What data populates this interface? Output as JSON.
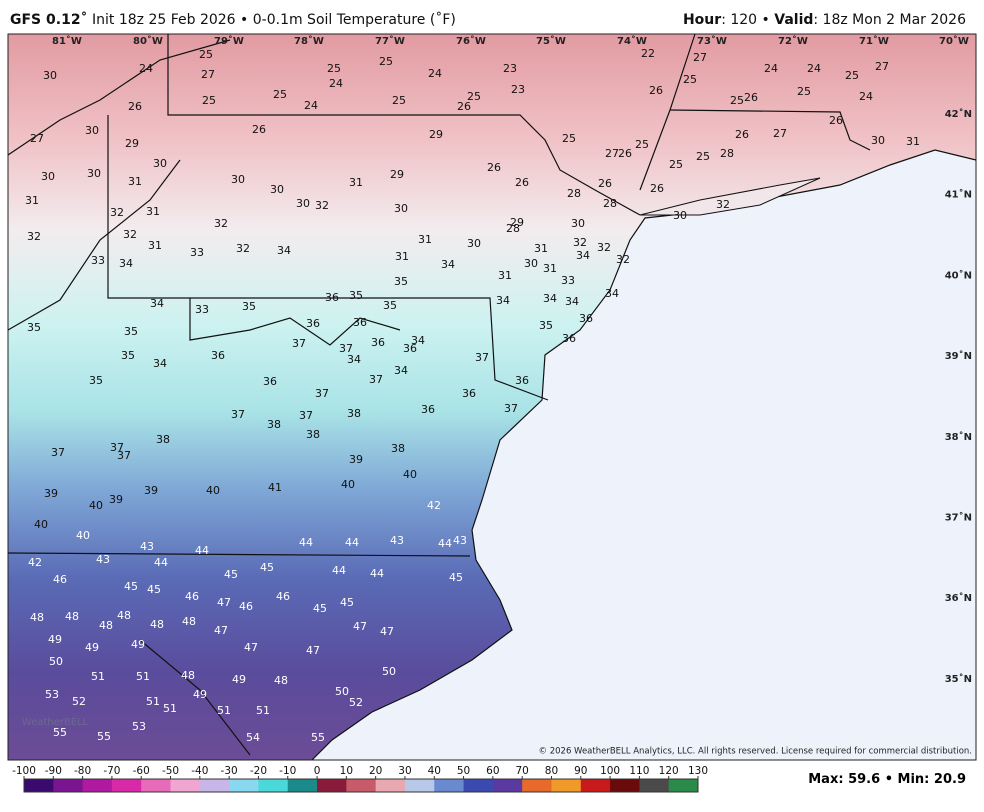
{
  "header": {
    "model": "GFS 0.12˚",
    "init": "Init 18z 25 Feb 2026 • 0-0.1m Soil Temperature (˚F)",
    "hour_label": "Hour",
    "hour_value": ": 120 •",
    "valid_label": "Valid",
    "valid_value": ": 18z Mon 2 Mar 2026"
  },
  "longitude_labels": [
    "81˚W",
    "80˚W",
    "79˚W",
    "78˚W",
    "77˚W",
    "76˚W",
    "75˚W",
    "74˚W",
    "73˚W",
    "72˚W",
    "71˚W",
    "70˚W"
  ],
  "latitude_labels": [
    "42˚N",
    "41˚N",
    "40˚N",
    "39˚N",
    "38˚N",
    "37˚N",
    "36˚N",
    "35˚N"
  ],
  "map_values": [
    30,
    24,
    25,
    27,
    26,
    25,
    25,
    24,
    25,
    24,
    25,
    25,
    24,
    26,
    25,
    23,
    23,
    25,
    26,
    22,
    27,
    25,
    25,
    26,
    24,
    24,
    25,
    25,
    27,
    24,
    26,
    30,
    31,
    26,
    27,
    28,
    25,
    25,
    25,
    26,
    27,
    27,
    30,
    29,
    30,
    26,
    29,
    30,
    30,
    31,
    30,
    30,
    31,
    29,
    31,
    32,
    31,
    30,
    32,
    30,
    26,
    26,
    28,
    26,
    28,
    26,
    30,
    32,
    32,
    32,
    32,
    31,
    33,
    32,
    34,
    31,
    30,
    29,
    28,
    30,
    32,
    32,
    32,
    31,
    30,
    31,
    34,
    33,
    34,
    31,
    34,
    31,
    33,
    35,
    35,
    34,
    33,
    35,
    36,
    35,
    35,
    34,
    34,
    34,
    34,
    35,
    37,
    36,
    36,
    36,
    37,
    34,
    36,
    34,
    35,
    36,
    36,
    37,
    35,
    34,
    36,
    35,
    36,
    37,
    37,
    34,
    36,
    36,
    36,
    37,
    37,
    37,
    38,
    38,
    38,
    38,
    37,
    37,
    37,
    38,
    39,
    40,
    39,
    40,
    39,
    39,
    40,
    41,
    40,
    42,
    40,
    40,
    43,
    43,
    44,
    44,
    44,
    43,
    44,
    43,
    44,
    42,
    46,
    45,
    45,
    45,
    45,
    44,
    44,
    45,
    48,
    48,
    48,
    48,
    48,
    48,
    46,
    47,
    46,
    46,
    45,
    45,
    47,
    47,
    47,
    49,
    49,
    49,
    47,
    47,
    50,
    51,
    51,
    48,
    49,
    48,
    50,
    53,
    52,
    51,
    49,
    51,
    51,
    51,
    50,
    52,
    53,
    55,
    55,
    54,
    55
  ],
  "copyright": "© 2026 WeatherBELL Analytics, LLC. All rights reserved. License required for commercial distribution.",
  "logo": "WeatherBELL",
  "colorbar": {
    "ticks": [
      -100,
      -90,
      -80,
      -70,
      -60,
      -50,
      -40,
      -30,
      -20,
      -10,
      0,
      10,
      20,
      30,
      40,
      50,
      60,
      70,
      80,
      90,
      100,
      110,
      120,
      130
    ]
  },
  "stats": {
    "max_label": "Max:",
    "max": 59.6,
    "separator": "•",
    "min_label": "Min:",
    "min": 20.9
  }
}
